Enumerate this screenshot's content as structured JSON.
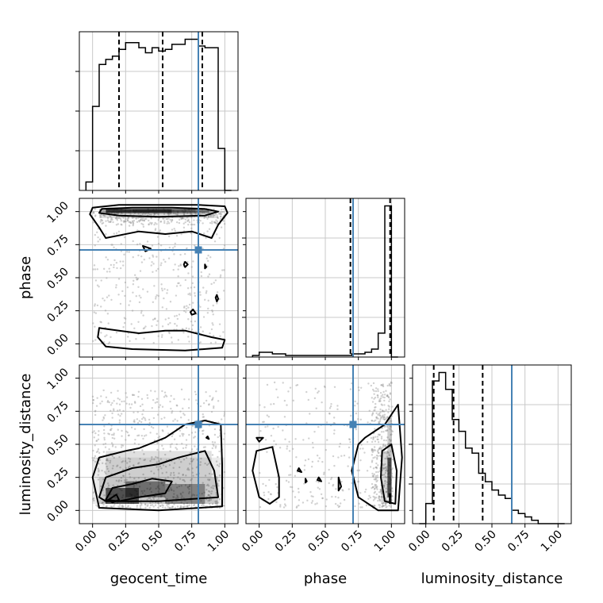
{
  "chart_data": {
    "type": "corner",
    "parameters": [
      "geocent_time",
      "phase",
      "luminosity_distance"
    ],
    "tick_labels": [
      "0.00",
      "0.25",
      "0.50",
      "0.75",
      "1.00"
    ],
    "ticks": [
      0,
      0.25,
      0.5,
      0.75,
      1.0
    ],
    "xlim": [
      -0.1,
      1.1
    ],
    "grid": true,
    "truths": {
      "geocent_time": 0.8,
      "phase": 0.71,
      "luminosity_distance": 0.65
    },
    "truth_color": "#4682b4",
    "quantiles": {
      "geocent_time": [
        0.2,
        0.53,
        0.83
      ],
      "phase": [
        0.69,
        0.99
      ],
      "luminosity_distance": [
        0.06,
        0.21,
        0.43
      ]
    },
    "histograms": {
      "geocent_time": {
        "bin_edges": [
          -0.05,
          0.0,
          0.05,
          0.1,
          0.15,
          0.2,
          0.25,
          0.3,
          0.35,
          0.4,
          0.45,
          0.5,
          0.55,
          0.6,
          0.65,
          0.7,
          0.75,
          0.8,
          0.85,
          0.9,
          0.95,
          1.0,
          1.05
        ],
        "counts": [
          0.05,
          0.5,
          0.75,
          0.78,
          0.8,
          0.84,
          0.88,
          0.88,
          0.85,
          0.82,
          0.85,
          0.83,
          0.84,
          0.87,
          0.87,
          0.9,
          0.9,
          0.86,
          0.85,
          0.85,
          0.25,
          0.0
        ]
      },
      "phase": {
        "bin_edges": [
          -0.05,
          0.0,
          0.05,
          0.1,
          0.15,
          0.2,
          0.25,
          0.3,
          0.35,
          0.4,
          0.45,
          0.5,
          0.55,
          0.6,
          0.65,
          0.7,
          0.75,
          0.8,
          0.85,
          0.9,
          0.95,
          1.0,
          1.05
        ],
        "counts": [
          0.01,
          0.03,
          0.03,
          0.02,
          0.02,
          0.01,
          0.01,
          0.01,
          0.01,
          0.01,
          0.01,
          0.01,
          0.01,
          0.01,
          0.01,
          0.02,
          0.02,
          0.03,
          0.05,
          0.15,
          0.95,
          0.0
        ]
      },
      "luminosity_distance": {
        "bin_edges": [
          -0.05,
          0.0,
          0.05,
          0.1,
          0.15,
          0.2,
          0.25,
          0.3,
          0.35,
          0.4,
          0.45,
          0.5,
          0.55,
          0.6,
          0.65,
          0.7,
          0.75,
          0.8,
          0.85,
          0.9,
          0.95,
          1.0,
          1.05
        ],
        "counts": [
          0.0,
          0.12,
          0.85,
          0.9,
          0.8,
          0.62,
          0.55,
          0.45,
          0.42,
          0.3,
          0.25,
          0.2,
          0.17,
          0.15,
          0.08,
          0.06,
          0.04,
          0.02,
          0.0,
          0.0,
          0.0,
          0.0
        ]
      }
    }
  }
}
